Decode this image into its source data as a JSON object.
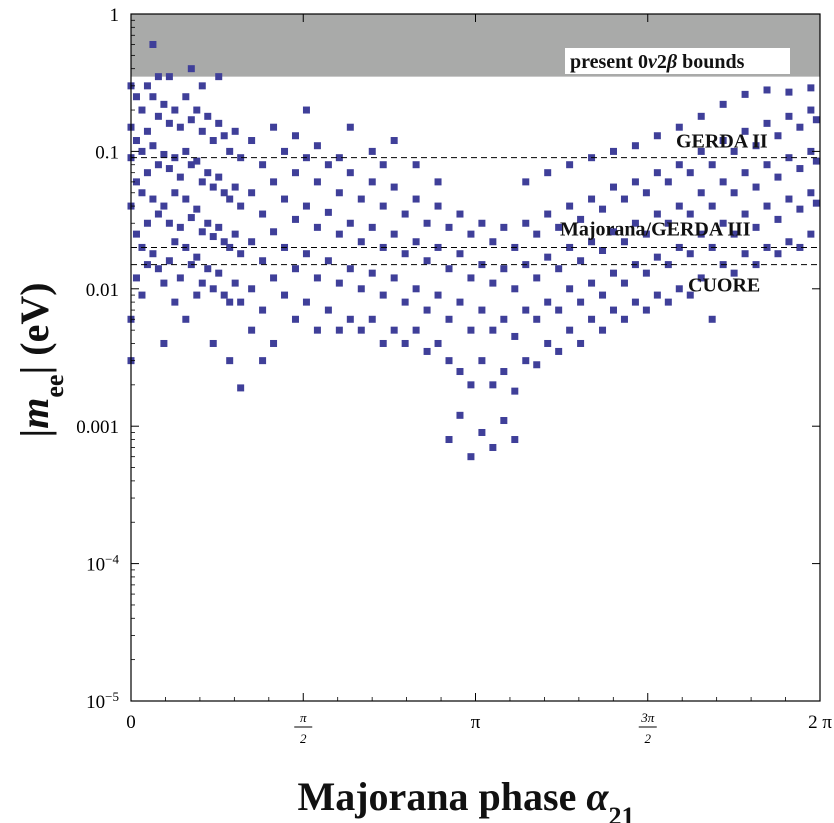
{
  "chart_data": {
    "type": "scatter",
    "title": "",
    "xlabel": "Majorana phase α21",
    "ylabel": "|mee| (eV)",
    "xlim": [
      0,
      6.283185
    ],
    "ylim": [
      1e-05,
      1
    ],
    "y_scale": "log",
    "grid": false,
    "marker_color": "#3f3f99",
    "x_ticks": [
      {
        "value": 0,
        "label": "0"
      },
      {
        "value": 1.570796,
        "label_num": "π",
        "label_den": "2"
      },
      {
        "value": 3.141593,
        "label": "π"
      },
      {
        "value": 4.712389,
        "label_num": "3π",
        "label_den": "2"
      },
      {
        "value": 6.283185,
        "label": "2 π"
      }
    ],
    "y_ticks": [
      {
        "value": 1,
        "label": "1"
      },
      {
        "value": 0.1,
        "label": "0.1"
      },
      {
        "value": 0.01,
        "label": "0.01"
      },
      {
        "value": 0.001,
        "label": "0.001"
      },
      {
        "value": 0.0001,
        "label_base": "10",
        "label_exp": "−4"
      },
      {
        "value": 1e-05,
        "label_base": "10",
        "label_exp": "−5"
      }
    ],
    "excluded_region": {
      "label_pre": "present 0",
      "label_nu": "ν",
      "label_mid": "2",
      "label_beta": "β",
      "label_post": " bounds",
      "y_min": 0.35,
      "y_max": 1,
      "color": "#a9aaa9"
    },
    "reference_lines": [
      {
        "label": "GERDA II",
        "value": 0.09
      },
      {
        "label": "Majorana/GERDA III",
        "value": 0.02
      },
      {
        "label": "CUORE",
        "value": 0.015
      }
    ],
    "points": [
      [
        0.0,
        0.04
      ],
      [
        0.0,
        0.09
      ],
      [
        0.0,
        0.15
      ],
      [
        0.0,
        0.3
      ],
      [
        0.0,
        0.006
      ],
      [
        0.0,
        0.003
      ],
      [
        0.05,
        0.25
      ],
      [
        0.05,
        0.12
      ],
      [
        0.05,
        0.06
      ],
      [
        0.05,
        0.025
      ],
      [
        0.05,
        0.012
      ],
      [
        0.1,
        0.2
      ],
      [
        0.1,
        0.1
      ],
      [
        0.1,
        0.05
      ],
      [
        0.1,
        0.02
      ],
      [
        0.1,
        0.009
      ],
      [
        0.15,
        0.3
      ],
      [
        0.15,
        0.14
      ],
      [
        0.15,
        0.07
      ],
      [
        0.15,
        0.03
      ],
      [
        0.15,
        0.015
      ],
      [
        0.2,
        0.25
      ],
      [
        0.2,
        0.11
      ],
      [
        0.2,
        0.045
      ],
      [
        0.2,
        0.018
      ],
      [
        0.2,
        0.6
      ],
      [
        0.25,
        0.18
      ],
      [
        0.25,
        0.08
      ],
      [
        0.25,
        0.035
      ],
      [
        0.25,
        0.014
      ],
      [
        0.25,
        0.35
      ],
      [
        0.3,
        0.22
      ],
      [
        0.3,
        0.095
      ],
      [
        0.3,
        0.04
      ],
      [
        0.3,
        0.011
      ],
      [
        0.3,
        0.004
      ],
      [
        0.35,
        0.16
      ],
      [
        0.35,
        0.075
      ],
      [
        0.35,
        0.03
      ],
      [
        0.35,
        0.016
      ],
      [
        0.35,
        0.35
      ],
      [
        0.4,
        0.2
      ],
      [
        0.4,
        0.09
      ],
      [
        0.4,
        0.05
      ],
      [
        0.4,
        0.022
      ],
      [
        0.4,
        0.008
      ],
      [
        0.45,
        0.15
      ],
      [
        0.45,
        0.065
      ],
      [
        0.45,
        0.028
      ],
      [
        0.45,
        0.012
      ],
      [
        0.5,
        0.25
      ],
      [
        0.5,
        0.1
      ],
      [
        0.5,
        0.045
      ],
      [
        0.5,
        0.02
      ],
      [
        0.5,
        0.006
      ],
      [
        0.55,
        0.17
      ],
      [
        0.55,
        0.08
      ],
      [
        0.55,
        0.033
      ],
      [
        0.55,
        0.015
      ],
      [
        0.55,
        0.4
      ],
      [
        0.6,
        0.2
      ],
      [
        0.6,
        0.085
      ],
      [
        0.6,
        0.038
      ],
      [
        0.6,
        0.017
      ],
      [
        0.6,
        0.009
      ],
      [
        0.65,
        0.14
      ],
      [
        0.65,
        0.06
      ],
      [
        0.65,
        0.026
      ],
      [
        0.65,
        0.011
      ],
      [
        0.65,
        0.3
      ],
      [
        0.7,
        0.18
      ],
      [
        0.7,
        0.07
      ],
      [
        0.7,
        0.03
      ],
      [
        0.7,
        0.014
      ],
      [
        0.75,
        0.12
      ],
      [
        0.75,
        0.055
      ],
      [
        0.75,
        0.024
      ],
      [
        0.75,
        0.01
      ],
      [
        0.75,
        0.004
      ],
      [
        0.8,
        0.16
      ],
      [
        0.8,
        0.065
      ],
      [
        0.8,
        0.028
      ],
      [
        0.8,
        0.013
      ],
      [
        0.8,
        0.35
      ],
      [
        0.85,
        0.13
      ],
      [
        0.85,
        0.05
      ],
      [
        0.85,
        0.022
      ],
      [
        0.85,
        0.009
      ],
      [
        0.9,
        0.1
      ],
      [
        0.9,
        0.045
      ],
      [
        0.9,
        0.02
      ],
      [
        0.9,
        0.008
      ],
      [
        0.9,
        0.003
      ],
      [
        0.95,
        0.14
      ],
      [
        0.95,
        0.055
      ],
      [
        0.95,
        0.025
      ],
      [
        0.95,
        0.011
      ],
      [
        1.0,
        0.09
      ],
      [
        1.0,
        0.04
      ],
      [
        1.0,
        0.018
      ],
      [
        1.0,
        0.008
      ],
      [
        1.0,
        0.0019
      ],
      [
        1.1,
        0.12
      ],
      [
        1.1,
        0.05
      ],
      [
        1.1,
        0.022
      ],
      [
        1.1,
        0.01
      ],
      [
        1.1,
        0.005
      ],
      [
        1.2,
        0.08
      ],
      [
        1.2,
        0.035
      ],
      [
        1.2,
        0.016
      ],
      [
        1.2,
        0.007
      ],
      [
        1.2,
        0.003
      ],
      [
        1.3,
        0.15
      ],
      [
        1.3,
        0.06
      ],
      [
        1.3,
        0.026
      ],
      [
        1.3,
        0.012
      ],
      [
        1.3,
        0.004
      ],
      [
        1.4,
        0.1
      ],
      [
        1.4,
        0.045
      ],
      [
        1.4,
        0.02
      ],
      [
        1.4,
        0.009
      ],
      [
        1.5,
        0.07
      ],
      [
        1.5,
        0.032
      ],
      [
        1.5,
        0.014
      ],
      [
        1.5,
        0.006
      ],
      [
        1.5,
        0.13
      ],
      [
        1.6,
        0.09
      ],
      [
        1.6,
        0.04
      ],
      [
        1.6,
        0.018
      ],
      [
        1.6,
        0.008
      ],
      [
        1.6,
        0.2
      ],
      [
        1.7,
        0.06
      ],
      [
        1.7,
        0.028
      ],
      [
        1.7,
        0.012
      ],
      [
        1.7,
        0.005
      ],
      [
        1.7,
        0.11
      ],
      [
        1.8,
        0.08
      ],
      [
        1.8,
        0.036
      ],
      [
        1.8,
        0.016
      ],
      [
        1.8,
        0.007
      ],
      [
        1.9,
        0.05
      ],
      [
        1.9,
        0.025
      ],
      [
        1.9,
        0.011
      ],
      [
        1.9,
        0.005
      ],
      [
        1.9,
        0.09
      ],
      [
        2.0,
        0.07
      ],
      [
        2.0,
        0.03
      ],
      [
        2.0,
        0.014
      ],
      [
        2.0,
        0.006
      ],
      [
        2.0,
        0.15
      ],
      [
        2.1,
        0.045
      ],
      [
        2.1,
        0.022
      ],
      [
        2.1,
        0.01
      ],
      [
        2.1,
        0.005
      ],
      [
        2.2,
        0.06
      ],
      [
        2.2,
        0.028
      ],
      [
        2.2,
        0.013
      ],
      [
        2.2,
        0.006
      ],
      [
        2.2,
        0.1
      ],
      [
        2.3,
        0.04
      ],
      [
        2.3,
        0.02
      ],
      [
        2.3,
        0.009
      ],
      [
        2.3,
        0.004
      ],
      [
        2.3,
        0.08
      ],
      [
        2.4,
        0.055
      ],
      [
        2.4,
        0.025
      ],
      [
        2.4,
        0.012
      ],
      [
        2.4,
        0.005
      ],
      [
        2.4,
        0.12
      ],
      [
        2.5,
        0.035
      ],
      [
        2.5,
        0.018
      ],
      [
        2.5,
        0.008
      ],
      [
        2.5,
        0.004
      ],
      [
        2.6,
        0.045
      ],
      [
        2.6,
        0.022
      ],
      [
        2.6,
        0.01
      ],
      [
        2.6,
        0.005
      ],
      [
        2.6,
        0.08
      ],
      [
        2.7,
        0.03
      ],
      [
        2.7,
        0.016
      ],
      [
        2.7,
        0.007
      ],
      [
        2.7,
        0.0035
      ],
      [
        2.8,
        0.04
      ],
      [
        2.8,
        0.02
      ],
      [
        2.8,
        0.009
      ],
      [
        2.8,
        0.004
      ],
      [
        2.8,
        0.06
      ],
      [
        2.9,
        0.028
      ],
      [
        2.9,
        0.014
      ],
      [
        2.9,
        0.006
      ],
      [
        2.9,
        0.003
      ],
      [
        2.9,
        0.0008
      ],
      [
        3.0,
        0.035
      ],
      [
        3.0,
        0.018
      ],
      [
        3.0,
        0.008
      ],
      [
        3.0,
        0.0025
      ],
      [
        3.0,
        0.0012
      ],
      [
        3.1,
        0.025
      ],
      [
        3.1,
        0.012
      ],
      [
        3.1,
        0.005
      ],
      [
        3.1,
        0.002
      ],
      [
        3.1,
        0.0006
      ],
      [
        3.2,
        0.03
      ],
      [
        3.2,
        0.015
      ],
      [
        3.2,
        0.007
      ],
      [
        3.2,
        0.003
      ],
      [
        3.2,
        0.0009
      ],
      [
        3.3,
        0.022
      ],
      [
        3.3,
        0.011
      ],
      [
        3.3,
        0.005
      ],
      [
        3.3,
        0.002
      ],
      [
        3.3,
        0.0007
      ],
      [
        3.4,
        0.028
      ],
      [
        3.4,
        0.014
      ],
      [
        3.4,
        0.006
      ],
      [
        3.4,
        0.0025
      ],
      [
        3.4,
        0.0011
      ],
      [
        3.5,
        0.02
      ],
      [
        3.5,
        0.01
      ],
      [
        3.5,
        0.0045
      ],
      [
        3.5,
        0.0018
      ],
      [
        3.5,
        0.0008
      ],
      [
        3.6,
        0.03
      ],
      [
        3.6,
        0.015
      ],
      [
        3.6,
        0.007
      ],
      [
        3.6,
        0.003
      ],
      [
        3.6,
        0.06
      ],
      [
        3.7,
        0.025
      ],
      [
        3.7,
        0.012
      ],
      [
        3.7,
        0.006
      ],
      [
        3.7,
        0.0028
      ],
      [
        3.8,
        0.035
      ],
      [
        3.8,
        0.017
      ],
      [
        3.8,
        0.008
      ],
      [
        3.8,
        0.004
      ],
      [
        3.8,
        0.07
      ],
      [
        3.9,
        0.028
      ],
      [
        3.9,
        0.014
      ],
      [
        3.9,
        0.007
      ],
      [
        3.9,
        0.0035
      ],
      [
        4.0,
        0.04
      ],
      [
        4.0,
        0.02
      ],
      [
        4.0,
        0.01
      ],
      [
        4.0,
        0.005
      ],
      [
        4.0,
        0.08
      ],
      [
        4.1,
        0.032
      ],
      [
        4.1,
        0.016
      ],
      [
        4.1,
        0.008
      ],
      [
        4.1,
        0.004
      ],
      [
        4.2,
        0.045
      ],
      [
        4.2,
        0.022
      ],
      [
        4.2,
        0.011
      ],
      [
        4.2,
        0.006
      ],
      [
        4.2,
        0.09
      ],
      [
        4.3,
        0.038
      ],
      [
        4.3,
        0.019
      ],
      [
        4.3,
        0.009
      ],
      [
        4.3,
        0.005
      ],
      [
        4.4,
        0.055
      ],
      [
        4.4,
        0.026
      ],
      [
        4.4,
        0.013
      ],
      [
        4.4,
        0.007
      ],
      [
        4.4,
        0.1
      ],
      [
        4.5,
        0.045
      ],
      [
        4.5,
        0.022
      ],
      [
        4.5,
        0.011
      ],
      [
        4.5,
        0.006
      ],
      [
        4.6,
        0.06
      ],
      [
        4.6,
        0.03
      ],
      [
        4.6,
        0.015
      ],
      [
        4.6,
        0.008
      ],
      [
        4.6,
        0.11
      ],
      [
        4.7,
        0.05
      ],
      [
        4.7,
        0.025
      ],
      [
        4.7,
        0.013
      ],
      [
        4.7,
        0.007
      ],
      [
        4.8,
        0.07
      ],
      [
        4.8,
        0.035
      ],
      [
        4.8,
        0.017
      ],
      [
        4.8,
        0.009
      ],
      [
        4.8,
        0.13
      ],
      [
        4.9,
        0.06
      ],
      [
        4.9,
        0.03
      ],
      [
        4.9,
        0.015
      ],
      [
        4.9,
        0.008
      ],
      [
        5.0,
        0.08
      ],
      [
        5.0,
        0.04
      ],
      [
        5.0,
        0.02
      ],
      [
        5.0,
        0.01
      ],
      [
        5.0,
        0.15
      ],
      [
        5.1,
        0.07
      ],
      [
        5.1,
        0.035
      ],
      [
        5.1,
        0.018
      ],
      [
        5.1,
        0.009
      ],
      [
        5.2,
        0.1
      ],
      [
        5.2,
        0.05
      ],
      [
        5.2,
        0.025
      ],
      [
        5.2,
        0.012
      ],
      [
        5.2,
        0.18
      ],
      [
        5.3,
        0.08
      ],
      [
        5.3,
        0.04
      ],
      [
        5.3,
        0.02
      ],
      [
        5.3,
        0.006
      ],
      [
        5.4,
        0.12
      ],
      [
        5.4,
        0.06
      ],
      [
        5.4,
        0.03
      ],
      [
        5.4,
        0.015
      ],
      [
        5.4,
        0.22
      ],
      [
        5.5,
        0.1
      ],
      [
        5.5,
        0.05
      ],
      [
        5.5,
        0.025
      ],
      [
        5.5,
        0.013
      ],
      [
        5.6,
        0.14
      ],
      [
        5.6,
        0.07
      ],
      [
        5.6,
        0.035
      ],
      [
        5.6,
        0.018
      ],
      [
        5.6,
        0.26
      ],
      [
        5.7,
        0.11
      ],
      [
        5.7,
        0.055
      ],
      [
        5.7,
        0.028
      ],
      [
        5.7,
        0.015
      ],
      [
        5.8,
        0.16
      ],
      [
        5.8,
        0.08
      ],
      [
        5.8,
        0.04
      ],
      [
        5.8,
        0.02
      ],
      [
        5.8,
        0.28
      ],
      [
        5.9,
        0.13
      ],
      [
        5.9,
        0.065
      ],
      [
        5.9,
        0.032
      ],
      [
        5.9,
        0.018
      ],
      [
        6.0,
        0.18
      ],
      [
        6.0,
        0.09
      ],
      [
        6.0,
        0.045
      ],
      [
        6.0,
        0.022
      ],
      [
        6.0,
        0.27
      ],
      [
        6.1,
        0.15
      ],
      [
        6.1,
        0.075
      ],
      [
        6.1,
        0.038
      ],
      [
        6.1,
        0.02
      ],
      [
        6.2,
        0.2
      ],
      [
        6.2,
        0.1
      ],
      [
        6.2,
        0.05
      ],
      [
        6.2,
        0.025
      ],
      [
        6.2,
        0.29
      ],
      [
        6.25,
        0.17
      ],
      [
        6.25,
        0.085
      ],
      [
        6.25,
        0.042
      ]
    ]
  }
}
